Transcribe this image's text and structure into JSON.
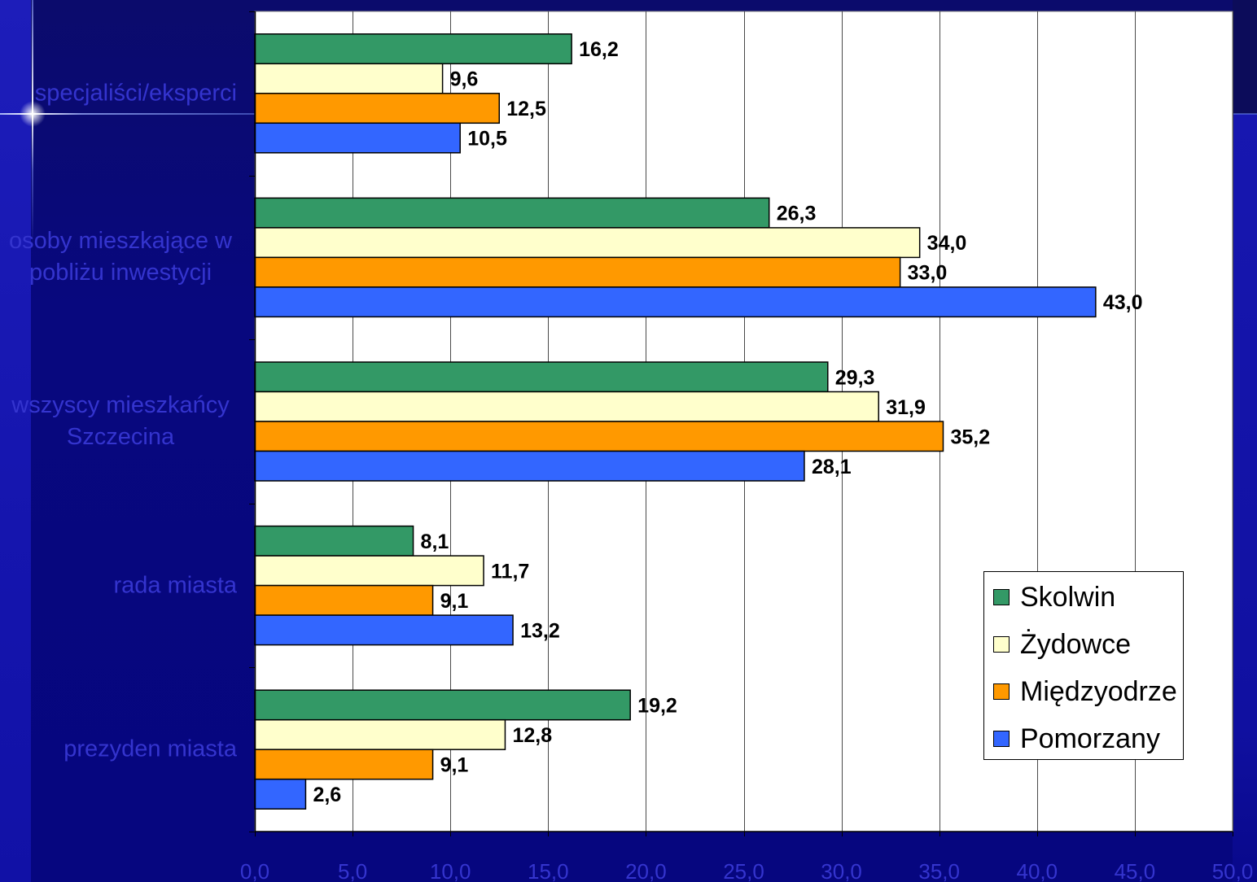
{
  "chart_data": {
    "type": "bar",
    "orientation": "horizontal",
    "categories": [
      "specjaliści/eksperci",
      "osoby mieszkające w pobliżu inwestycji",
      "wszyscy mieszkańcy Szczecina",
      "rada miasta",
      "prezyden miasta"
    ],
    "series": [
      {
        "name": "Skolwin",
        "color": "#339966",
        "values": [
          16.2,
          26.3,
          29.3,
          8.1,
          19.2
        ],
        "data_labels": [
          "16,2",
          "26,3",
          "29,3",
          "8,1",
          "19,2"
        ]
      },
      {
        "name": "Żydowce",
        "color": "#FFFFCC",
        "values": [
          9.6,
          34.0,
          31.9,
          11.7,
          12.8
        ],
        "data_labels": [
          "9,6",
          "34,0",
          "31,9",
          "11,7",
          "12,8"
        ]
      },
      {
        "name": "Międzyodrze",
        "color": "#FF9900",
        "values": [
          12.5,
          33.0,
          35.2,
          9.1,
          9.1
        ],
        "data_labels": [
          "12,5",
          "33,0",
          "35,2",
          "9,1",
          "9,1"
        ]
      },
      {
        "name": "Pomorzany",
        "color": "#3366FF",
        "values": [
          10.5,
          43.0,
          28.1,
          13.2,
          2.6
        ],
        "data_labels": [
          "10,5",
          "43,0",
          "28,1",
          "13,2",
          "2,6"
        ]
      }
    ],
    "xlim": [
      0,
      50
    ],
    "xticks": [
      0,
      5,
      10,
      15,
      20,
      25,
      30,
      35,
      40,
      45,
      50
    ],
    "xtick_labels": [
      "0,0",
      "5,0",
      "10,0",
      "15,0",
      "20,0",
      "25,0",
      "30,0",
      "35,0",
      "40,0",
      "45,0",
      "50,0"
    ],
    "grid": "vertical",
    "legend": "bottom-right"
  },
  "colors": {
    "plot_background": "#FFFFFF",
    "axis_text": "#3434CE",
    "data_label_text": "#000000"
  }
}
